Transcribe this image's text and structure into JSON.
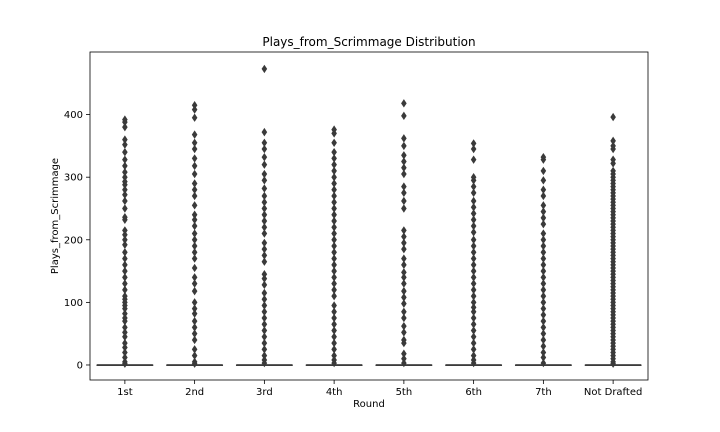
{
  "chart_data": {
    "type": "boxplot",
    "title": "Plays_from_Scrimmage Distribution",
    "xlabel": "Round",
    "ylabel": "Plays_from_Scrimmage",
    "categories": [
      "1st",
      "2nd",
      "3rd",
      "4th",
      "5th",
      "6th",
      "7th",
      "Not Drafted"
    ],
    "yticks": [
      0,
      100,
      200,
      300,
      400
    ],
    "ylim": [
      -24,
      500
    ],
    "box_color": "#3a3a3a",
    "boxes": [
      {
        "category": "1st",
        "q1": 0,
        "median": 0,
        "q3": 0,
        "whisker_low": 0,
        "whisker_high": 0,
        "outliers": [
          392,
          388,
          380,
          360,
          352,
          340,
          328,
          318,
          308,
          300,
          293,
          288,
          280,
          272,
          262,
          250,
          236,
          232,
          215,
          208,
          200,
          192,
          180,
          170,
          160,
          150,
          140,
          130,
          120,
          110,
          105,
          100,
          95,
          90,
          82,
          75,
          70,
          60,
          52,
          45,
          35,
          28,
          20,
          12,
          5,
          2
        ]
      },
      {
        "category": "2nd",
        "q1": 0,
        "median": 0,
        "q3": 0,
        "whisker_low": 0,
        "whisker_high": 0,
        "outliers": [
          415,
          408,
          395,
          368,
          355,
          345,
          330,
          318,
          305,
          290,
          280,
          270,
          255,
          240,
          232,
          222,
          210,
          200,
          190,
          180,
          170,
          155,
          140,
          130,
          118,
          100,
          90,
          82,
          70,
          60,
          50,
          40,
          25,
          15,
          5,
          2
        ]
      },
      {
        "category": "3rd",
        "q1": 0,
        "median": 0,
        "q3": 0,
        "whisker_low": 0,
        "whisker_high": 0,
        "outliers": [
          473,
          372,
          355,
          345,
          332,
          320,
          305,
          295,
          282,
          270,
          260,
          250,
          240,
          230,
          220,
          210,
          195,
          185,
          175,
          165,
          145,
          138,
          128,
          115,
          105,
          95,
          85,
          75,
          65,
          55,
          45,
          35,
          25,
          15,
          8,
          3
        ]
      },
      {
        "category": "4th",
        "q1": 0,
        "median": 0,
        "q3": 0,
        "whisker_low": 0,
        "whisker_high": 0,
        "outliers": [
          376,
          370,
          355,
          340,
          330,
          320,
          310,
          300,
          290,
          280,
          270,
          260,
          250,
          240,
          230,
          220,
          210,
          200,
          190,
          180,
          170,
          160,
          150,
          140,
          130,
          120,
          110,
          95,
          85,
          75,
          65,
          55,
          45,
          35,
          25,
          15,
          8,
          3
        ]
      },
      {
        "category": "5th",
        "q1": 0,
        "median": 0,
        "q3": 0,
        "whisker_low": 0,
        "whisker_high": 0,
        "outliers": [
          418,
          398,
          362,
          350,
          335,
          325,
          315,
          305,
          285,
          275,
          262,
          250,
          215,
          205,
          195,
          185,
          170,
          160,
          148,
          140,
          130,
          118,
          108,
          98,
          85,
          75,
          62,
          52,
          40,
          35,
          18,
          10,
          3
        ]
      },
      {
        "category": "6th",
        "q1": 0,
        "median": 0,
        "q3": 0,
        "whisker_low": 0,
        "whisker_high": 0,
        "outliers": [
          354,
          345,
          328,
          300,
          295,
          285,
          275,
          262,
          252,
          242,
          232,
          222,
          212,
          200,
          190,
          180,
          170,
          160,
          150,
          140,
          130,
          120,
          110,
          100,
          92,
          85,
          75,
          65,
          55,
          45,
          35,
          25,
          15,
          8,
          3
        ]
      },
      {
        "category": "7th",
        "q1": 0,
        "median": 0,
        "q3": 0,
        "whisker_low": 0,
        "whisker_high": 0,
        "outliers": [
          332,
          328,
          310,
          295,
          280,
          270,
          255,
          245,
          235,
          225,
          210,
          200,
          190,
          180,
          170,
          160,
          150,
          140,
          130,
          120,
          110,
          100,
          90,
          80,
          70,
          60,
          50,
          40,
          30,
          20,
          12,
          3
        ]
      },
      {
        "category": "Not Drafted",
        "q1": 0,
        "median": 0,
        "q3": 0,
        "whisker_low": 0,
        "whisker_high": 0,
        "outliers": [
          396,
          358,
          350,
          345,
          328,
          322,
          310,
          305,
          300,
          295,
          290,
          285,
          280,
          275,
          270,
          265,
          260,
          255,
          250,
          245,
          240,
          235,
          230,
          225,
          220,
          215,
          210,
          205,
          200,
          195,
          190,
          185,
          180,
          175,
          170,
          165,
          160,
          155,
          150,
          145,
          140,
          135,
          130,
          125,
          120,
          115,
          110,
          105,
          100,
          95,
          90,
          85,
          80,
          75,
          70,
          65,
          60,
          55,
          50,
          45,
          40,
          35,
          30,
          25,
          20,
          15,
          10,
          5,
          2
        ]
      }
    ],
    "grid": false,
    "legend": "none"
  }
}
